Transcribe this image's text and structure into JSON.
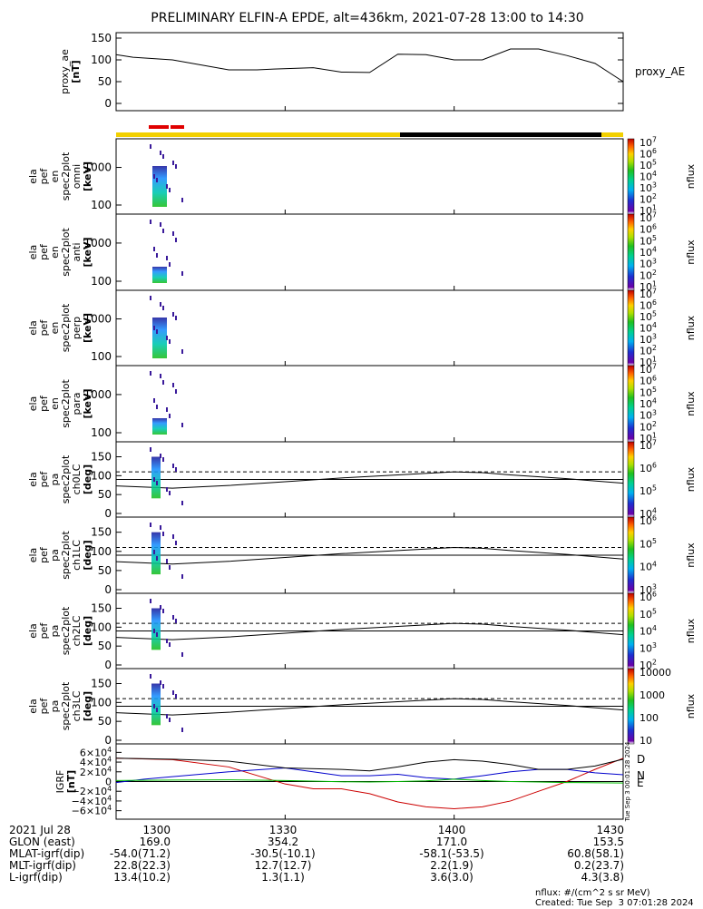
{
  "chart_data": {
    "type": "line",
    "title": "PRELIMINARY ELFIN-A EPDE, alt=436km, 2021-07-28 13:00 to 14:30",
    "panels": [
      {
        "id": "proxy_ae",
        "type": "line",
        "ylabel": [
          "proxy_ae",
          "[nT]"
        ],
        "ylim": [
          0,
          150
        ],
        "yticks": [
          "0",
          "50",
          "100",
          "150"
        ],
        "legend": "proxy_AE",
        "x": [
          0,
          3,
          10,
          20,
          25,
          28,
          35,
          40,
          45,
          50,
          55,
          60,
          65,
          70,
          75,
          80,
          85,
          90
        ],
        "y": [
          112,
          106,
          100,
          77,
          77,
          79,
          82,
          72,
          71,
          113,
          112,
          100,
          100,
          125,
          125,
          110,
          92,
          50
        ]
      },
      {
        "id": "omni",
        "type": "heatmap",
        "ylabel": [
          "ela",
          "pef",
          "en",
          "spec2plot",
          "omni",
          "[keV]"
        ],
        "yticks": [
          "100",
          "1000"
        ],
        "cbar": {
          "label": "nflux",
          "ticks": [
            "10^7",
            "10^6",
            "10^5",
            "10^4",
            "10^3",
            "10^2",
            "10^1"
          ]
        }
      },
      {
        "id": "anti",
        "type": "heatmap",
        "ylabel": [
          "ela",
          "pef",
          "en",
          "spec2plot",
          "anti",
          "[keV]"
        ],
        "yticks": [
          "100",
          "1000"
        ],
        "cbar": {
          "label": "nflux",
          "ticks": [
            "10^7",
            "10^6",
            "10^5",
            "10^4",
            "10^3",
            "10^2",
            "10^1"
          ]
        }
      },
      {
        "id": "perp",
        "type": "heatmap",
        "ylabel": [
          "ela",
          "pef",
          "en",
          "spec2plot",
          "perp",
          "[keV]"
        ],
        "yticks": [
          "100",
          "1000"
        ],
        "cbar": {
          "label": "nflux",
          "ticks": [
            "10^7",
            "10^6",
            "10^5",
            "10^4",
            "10^3",
            "10^2",
            "10^1"
          ]
        }
      },
      {
        "id": "para",
        "type": "heatmap",
        "ylabel": [
          "ela",
          "pef",
          "en",
          "spec2plot",
          "para",
          "[keV]"
        ],
        "yticks": [
          "100",
          "1000"
        ],
        "cbar": {
          "label": "nflux",
          "ticks": [
            "10^7",
            "10^6",
            "10^5",
            "10^4",
            "10^3",
            "10^2",
            "10^1"
          ]
        }
      },
      {
        "id": "ch0LC",
        "type": "heatmap",
        "ylabel": [
          "ela",
          "pef",
          "pa",
          "spec2plot",
          "ch0LC",
          "[deg]"
        ],
        "ylim": [
          0,
          180
        ],
        "yticks": [
          "0",
          "50",
          "100",
          "150"
        ],
        "cbar": {
          "label": "nflux",
          "ticks": [
            "10^7",
            "10^6",
            "10^5",
            "10^4"
          ]
        }
      },
      {
        "id": "ch1LC",
        "type": "heatmap",
        "ylabel": [
          "ela",
          "pef",
          "pa",
          "spec2plot",
          "ch1LC",
          "[deg]"
        ],
        "ylim": [
          0,
          180
        ],
        "yticks": [
          "0",
          "50",
          "100",
          "150"
        ],
        "cbar": {
          "label": "nflux",
          "ticks": [
            "10^6",
            "10^5",
            "10^4",
            "10^3"
          ]
        }
      },
      {
        "id": "ch2LC",
        "type": "heatmap",
        "ylabel": [
          "ela",
          "pef",
          "pa",
          "spec2plot",
          "ch2LC",
          "[deg]"
        ],
        "ylim": [
          0,
          180
        ],
        "yticks": [
          "0",
          "50",
          "100",
          "150"
        ],
        "cbar": {
          "label": "nflux",
          "ticks": [
            "10^6",
            "10^5",
            "10^4",
            "10^3",
            "10^2"
          ]
        }
      },
      {
        "id": "ch3LC",
        "type": "heatmap",
        "ylabel": [
          "ela",
          "pef",
          "pa",
          "spec2plot",
          "ch3LC",
          "[deg]"
        ],
        "ylim": [
          0,
          180
        ],
        "yticks": [
          "0",
          "50",
          "100",
          "150"
        ],
        "cbar": {
          "label": "nflux",
          "ticks": [
            "10000",
            "1000",
            "100",
            "10"
          ]
        }
      },
      {
        "id": "igrf",
        "type": "line",
        "ylabel": [
          "IGRF",
          "[nT]"
        ],
        "ylim": [
          -70000,
          70000
        ],
        "yticks": [
          "−6×10^4",
          "−4×10^4",
          "−2×10^4",
          "0",
          "2×10^4",
          "4×10^4",
          "6×10^4"
        ],
        "side_note": "Tue Sep  3 00:01:28 2024",
        "series": [
          {
            "name": "D",
            "color": "#cc0000",
            "x": [
              0,
              10,
              20,
              30,
              35,
              40,
              45,
              50,
              55,
              60,
              65,
              70,
              75,
              80,
              85,
              90
            ],
            "y": [
              48000,
              45000,
              30000,
              -5000,
              -15000,
              -15000,
              -25000,
              -42000,
              -52000,
              -56000,
              -52000,
              -40000,
              -20000,
              0,
              25000,
              48000
            ]
          },
          {
            "name": "N",
            "color": "#0000cc",
            "x": [
              0,
              5,
              10,
              20,
              30,
              40,
              45,
              50,
              55,
              60,
              65,
              70,
              75,
              80,
              85,
              90
            ],
            "y": [
              -2000,
              5000,
              10000,
              20000,
              28000,
              12000,
              12000,
              15000,
              8000,
              5000,
              12000,
              20000,
              25000,
              25000,
              18000,
              14000
            ]
          },
          {
            "name": "E",
            "color": "#00bb00",
            "x": [
              0,
              10,
              20,
              30,
              40,
              45,
              50,
              55,
              60,
              65,
              70,
              75,
              80,
              90
            ],
            "y": [
              2000,
              3000,
              3500,
              2000,
              -500,
              -1000,
              0,
              1500,
              5000,
              2000,
              0,
              -1000,
              -2000,
              -3000
            ]
          },
          {
            "name": "",
            "color": "#000000",
            "x": [
              0,
              10,
              20,
              30,
              40,
              45,
              50,
              55,
              60,
              65,
              70,
              75,
              80,
              85,
              90
            ],
            "y": [
              48000,
              46000,
              42000,
              28000,
              25000,
              22000,
              30000,
              40000,
              45000,
              42000,
              35000,
              25000,
              25000,
              32000,
              46000
            ]
          }
        ]
      }
    ],
    "dashed_level_deg": 110,
    "lc_curve": {
      "x": [
        0,
        10,
        20,
        30,
        40,
        50,
        60,
        65,
        70,
        80,
        90
      ],
      "y": [
        73,
        67,
        74,
        84,
        94,
        102,
        110,
        108,
        102,
        92,
        80
      ]
    },
    "xticks": [
      "1300",
      "1330",
      "1400",
      "1430"
    ],
    "orbit_table": {
      "rows": [
        [
          "2021 Jul 28",
          "1300",
          "1330",
          "1400",
          "1430"
        ],
        [
          "GLON (east)",
          "169.0",
          "354.2",
          "171.0",
          "153.5"
        ],
        [
          "MLAT-igrf(dip)",
          "-54.0(71.2)",
          "-30.5(-10.1)",
          "-58.1(-53.5)",
          "60.8(58.1)"
        ],
        [
          "MLT-igrf(dip)",
          "22.8(22.3)",
          "12.7(12.7)",
          "2.2(1.9)",
          "0.2(23.7)"
        ],
        [
          "L-igrf(dip)",
          "13.4(10.2)",
          "1.3(1.1)",
          "3.6(3.0)",
          "4.3(3.8)"
        ]
      ]
    },
    "units_note": "nflux: #/(cm^2 s sr MeV)",
    "created": "Created: Tue Sep  3 07:01:28 2024"
  }
}
